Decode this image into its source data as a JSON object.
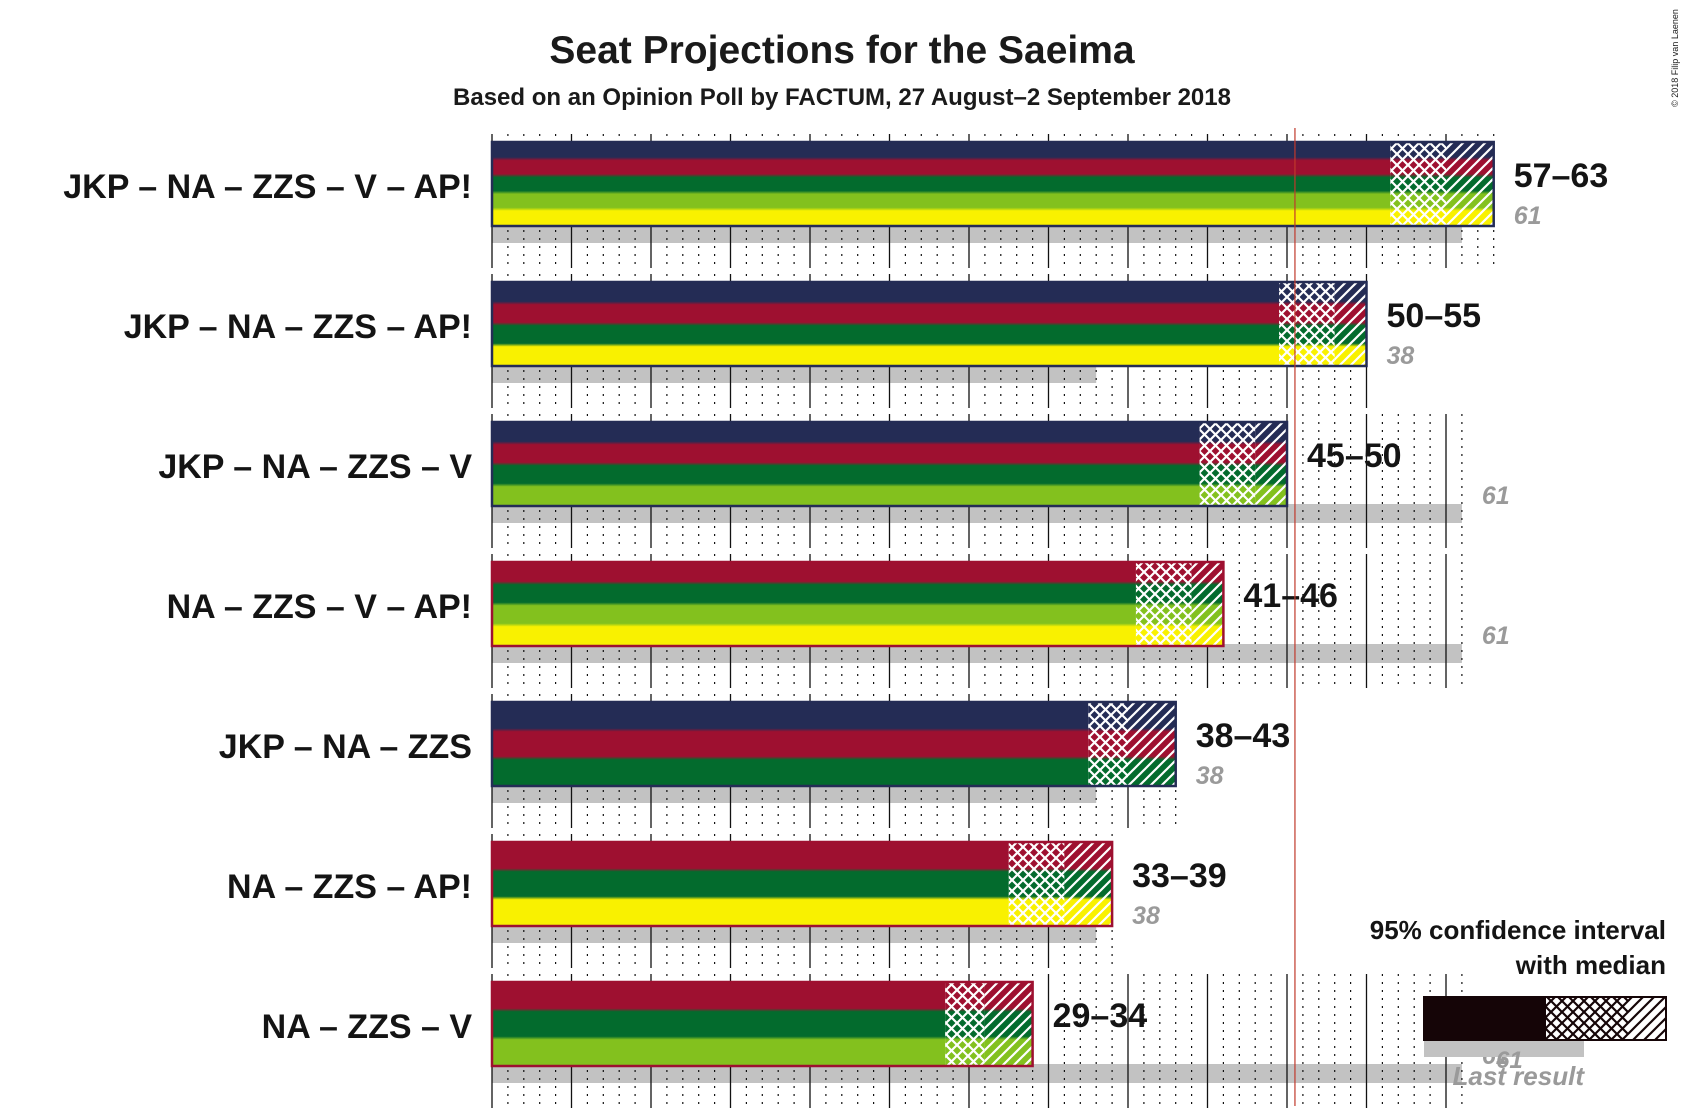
{
  "chart_data": {
    "type": "bar",
    "title": "Seat Projections for the Saeima",
    "subtitle": "Based on an Opinion Poll by FACTUM, 27 August–2 September 2018",
    "copyright": "© 2018 Filip van Laenen",
    "majority_line": 51,
    "xlim": [
      0,
      61
    ],
    "parties": {
      "JKP": "#242C55",
      "NA": "#9E1030",
      "ZZS": "#036B2D",
      "V": "#83C11E",
      "AP!": "#F9F100"
    },
    "coalitions": [
      {
        "label": "JKP – NA – ZZS – V – AP!",
        "parties": [
          "JKP",
          "NA",
          "ZZS",
          "V",
          "AP!"
        ],
        "low": 57,
        "median": 60,
        "high": 63,
        "range_label": "57–63",
        "last_result": 61,
        "last_result_label": "61"
      },
      {
        "label": "JKP – NA – ZZS – AP!",
        "parties": [
          "JKP",
          "NA",
          "ZZS",
          "AP!"
        ],
        "low": 50,
        "median": 53,
        "high": 55,
        "range_label": "50–55",
        "last_result": 38,
        "last_result_label": "38"
      },
      {
        "label": "JKP – NA – ZZS – V",
        "parties": [
          "JKP",
          "NA",
          "ZZS",
          "V"
        ],
        "low": 45,
        "median": 48,
        "high": 50,
        "range_label": "45–50",
        "last_result": 61,
        "last_result_label": "61"
      },
      {
        "label": "NA – ZZS – V – AP!",
        "parties": [
          "NA",
          "ZZS",
          "V",
          "AP!"
        ],
        "low": 41,
        "median": 44,
        "high": 46,
        "range_label": "41–46",
        "last_result": 61,
        "last_result_label": "61"
      },
      {
        "label": "JKP – NA – ZZS",
        "parties": [
          "JKP",
          "NA",
          "ZZS"
        ],
        "low": 38,
        "median": 40,
        "high": 43,
        "range_label": "38–43",
        "last_result": 38,
        "last_result_label": "38"
      },
      {
        "label": "NA – ZZS – AP!",
        "parties": [
          "NA",
          "ZZS",
          "AP!"
        ],
        "low": 33,
        "median": 36,
        "high": 39,
        "range_label": "33–39",
        "last_result": 38,
        "last_result_label": "38"
      },
      {
        "label": "NA – ZZS – V",
        "parties": [
          "NA",
          "ZZS",
          "V"
        ],
        "low": 29,
        "median": 31,
        "high": 34,
        "range_label": "29–34",
        "last_result": 61,
        "last_result_label": "61"
      }
    ],
    "legend": {
      "title_line1": "95% confidence interval",
      "title_line2": "with median",
      "sample_last": "61",
      "last_label": "Last result",
      "position": "bottom-right"
    }
  }
}
